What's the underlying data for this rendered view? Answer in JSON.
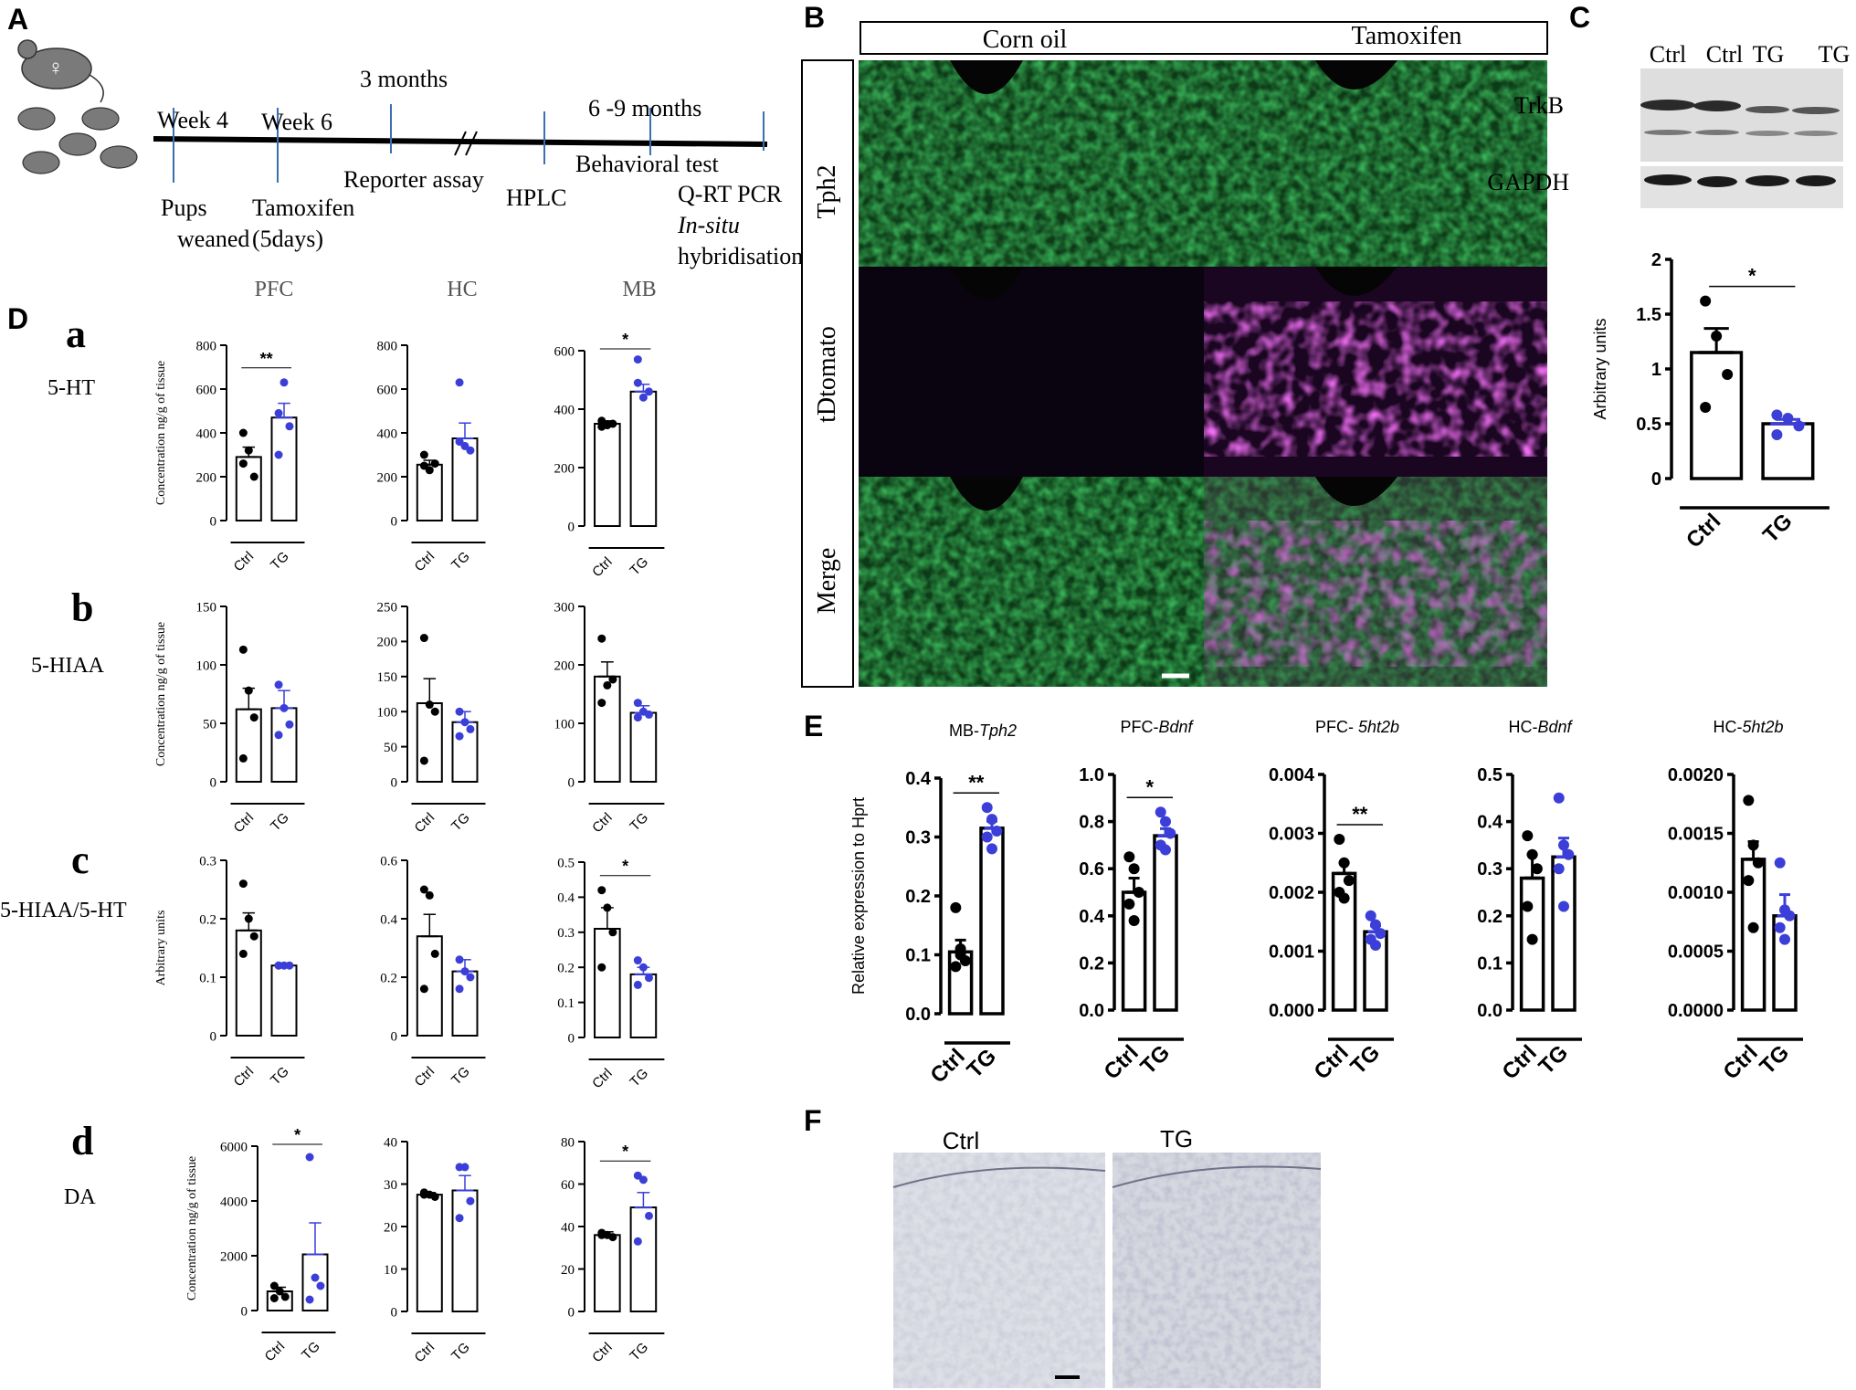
{
  "panel_labels": {
    "A": "A",
    "B": "B",
    "C": "C",
    "D": "D",
    "E": "E",
    "F": "F"
  },
  "panel_a": {
    "timeline": [
      {
        "top": "Week 4",
        "bottom": "Pups\nweaned"
      },
      {
        "top": "Week 6",
        "bottom": "Tamoxifen\n(5days)"
      },
      {
        "top": "3 months",
        "bottom": "Reporter assay"
      },
      {
        "top": "",
        "bottom": "HPLC"
      },
      {
        "top": "6 -9 months",
        "bottom": "Behavioral test"
      },
      {
        "top": "",
        "bottom": "Q-RT PCR\nIn-situ\nhybridisation"
      }
    ],
    "female_symbol": "♀"
  },
  "panel_b": {
    "columns": [
      "Corn oil",
      "Tamoxifen"
    ],
    "rows": [
      "Tph2",
      "tDtomato",
      "Merge"
    ]
  },
  "panel_c": {
    "blot_lanes": [
      "Ctrl",
      "Ctrl",
      "TG",
      "TG"
    ],
    "blot_rows": [
      "TrkB",
      "GAPDH"
    ]
  },
  "panel_d": {
    "columns": [
      "PFC",
      "HC",
      "MB"
    ],
    "rows": [
      {
        "letter": "a",
        "name": "5-HT"
      },
      {
        "letter": "b",
        "name": "5-HIAA"
      },
      {
        "letter": "c",
        "name": "5-HIAA/5-HT"
      },
      {
        "letter": "d",
        "name": "DA"
      }
    ]
  },
  "panel_f": {
    "labels": [
      "Ctrl",
      "TG"
    ]
  },
  "colors": {
    "ctrl": "#000000",
    "tg": "#3b3fd8",
    "tph2": "#1fa03a",
    "tdtomato": "#d12ad8"
  },
  "chart_data": [
    {
      "id": "D-a-PFC",
      "type": "bar",
      "categories": [
        "Ctrl",
        "TG"
      ],
      "values": [
        290,
        470
      ],
      "errors": [
        45,
        65
      ],
      "points": [
        [
          400,
          320,
          200,
          260
        ],
        [
          490,
          630,
          430,
          300
        ]
      ],
      "ylim": [
        0,
        800
      ],
      "yticks": [
        0,
        200,
        400,
        600,
        800
      ],
      "ylabel": "Concentration ng/g of tissue",
      "sig": "**"
    },
    {
      "id": "D-a-HC",
      "type": "bar",
      "categories": [
        "Ctrl",
        "TG"
      ],
      "values": [
        255,
        375
      ],
      "errors": [
        20,
        70
      ],
      "points": [
        [
          300,
          230,
          260,
          250
        ],
        [
          630,
          340,
          320,
          360
        ]
      ],
      "ylim": [
        0,
        800
      ],
      "yticks": [
        0,
        200,
        400,
        600,
        800
      ],
      "ylabel": "",
      "sig": ""
    },
    {
      "id": "D-a-MB",
      "type": "bar",
      "categories": [
        "Ctrl",
        "TG"
      ],
      "values": [
        350,
        460
      ],
      "errors": [
        10,
        25
      ],
      "points": [
        [
          360,
          345,
          350,
          340
        ],
        [
          570,
          440,
          460,
          490
        ]
      ],
      "ylim": [
        0,
        600
      ],
      "yticks": [
        0,
        200,
        400,
        600
      ],
      "ylabel": "",
      "sig": "*"
    },
    {
      "id": "D-b-PFC",
      "type": "bar",
      "categories": [
        "Ctrl",
        "TG"
      ],
      "values": [
        62,
        63
      ],
      "errors": [
        18,
        15
      ],
      "points": [
        [
          113,
          78,
          55,
          20
        ],
        [
          83,
          63,
          49,
          40
        ]
      ],
      "ylim": [
        0,
        150
      ],
      "yticks": [
        0,
        50,
        100,
        150
      ],
      "ylabel": "Concentration ng/g of tissue",
      "sig": ""
    },
    {
      "id": "D-b-HC",
      "type": "bar",
      "categories": [
        "Ctrl",
        "TG"
      ],
      "values": [
        112,
        85
      ],
      "errors": [
        35,
        15
      ],
      "points": [
        [
          205,
          110,
          100,
          30
        ],
        [
          100,
          85,
          75,
          65
        ]
      ],
      "ylim": [
        0,
        250
      ],
      "yticks": [
        0,
        50,
        100,
        150,
        200,
        250
      ],
      "ylabel": "",
      "sig": ""
    },
    {
      "id": "D-b-MB",
      "type": "bar",
      "categories": [
        "Ctrl",
        "TG"
      ],
      "values": [
        180,
        118
      ],
      "errors": [
        25,
        12
      ],
      "points": [
        [
          245,
          165,
          175,
          135
        ],
        [
          135,
          120,
          115,
          110
        ]
      ],
      "ylim": [
        0,
        300
      ],
      "yticks": [
        0,
        100,
        200,
        300
      ],
      "ylabel": "",
      "sig": ""
    },
    {
      "id": "D-c-PFC",
      "type": "bar",
      "categories": [
        "Ctrl",
        "TG"
      ],
      "values": [
        0.18,
        0.12
      ],
      "errors": [
        0.03,
        0.0
      ],
      "points": [
        [
          0.26,
          0.2,
          0.17,
          0.14
        ],
        [
          0.12,
          0.12,
          0.12,
          0.12
        ]
      ],
      "ylim": [
        0,
        0.3
      ],
      "yticks": [
        0.0,
        0.1,
        0.2,
        0.3
      ],
      "ylabel": "Arbitrary units",
      "sig": ""
    },
    {
      "id": "D-c-HC",
      "type": "bar",
      "categories": [
        "Ctrl",
        "TG"
      ],
      "values": [
        0.34,
        0.22
      ],
      "errors": [
        0.075,
        0.04
      ],
      "points": [
        [
          0.5,
          0.48,
          0.28,
          0.16
        ],
        [
          0.26,
          0.22,
          0.2,
          0.16
        ]
      ],
      "ylim": [
        0,
        0.6
      ],
      "yticks": [
        0.0,
        0.2,
        0.4,
        0.6
      ],
      "ylabel": "",
      "sig": ""
    },
    {
      "id": "D-c-MB",
      "type": "bar",
      "categories": [
        "Ctrl",
        "TG"
      ],
      "values": [
        0.31,
        0.18
      ],
      "errors": [
        0.06,
        0.02
      ],
      "points": [
        [
          0.42,
          0.37,
          0.3,
          0.2
        ],
        [
          0.22,
          0.2,
          0.17,
          0.15
        ]
      ],
      "ylim": [
        0,
        0.5
      ],
      "yticks": [
        0.0,
        0.1,
        0.2,
        0.3,
        0.4,
        0.5
      ],
      "ylabel": "",
      "sig": "*"
    },
    {
      "id": "D-d-PFC",
      "type": "bar",
      "categories": [
        "Ctrl",
        "TG"
      ],
      "values": [
        700,
        2050
      ],
      "errors": [
        150,
        1150
      ],
      "points": [
        [
          900,
          700,
          500,
          450
        ],
        [
          5600,
          1200,
          900,
          400
        ]
      ],
      "ylim": [
        0,
        6000
      ],
      "yticks": [
        0,
        2000,
        4000,
        6000
      ],
      "ylabel": "Concentration ng/g of tissue",
      "sig": "*"
    },
    {
      "id": "D-d-HC",
      "type": "bar",
      "categories": [
        "Ctrl",
        "TG"
      ],
      "values": [
        27.5,
        28.5
      ],
      "errors": [
        0.5,
        3.5
      ],
      "points": [
        [
          28,
          27.5,
          27,
          27.5
        ],
        [
          34,
          34,
          26,
          22
        ]
      ],
      "ylim": [
        0,
        40
      ],
      "yticks": [
        0,
        10,
        20,
        30,
        40
      ],
      "ylabel": "",
      "sig": ""
    },
    {
      "id": "D-d-MB",
      "type": "bar",
      "categories": [
        "Ctrl",
        "TG"
      ],
      "values": [
        36,
        49
      ],
      "errors": [
        1.5,
        7
      ],
      "points": [
        [
          37,
          36,
          35,
          36
        ],
        [
          64,
          62,
          45,
          33
        ]
      ],
      "ylim": [
        0,
        80
      ],
      "yticks": [
        0,
        20,
        40,
        60,
        80
      ],
      "ylabel": "",
      "sig": "*"
    },
    {
      "id": "C-TrkB",
      "type": "bar",
      "categories": [
        "Ctrl",
        "TG"
      ],
      "values": [
        1.15,
        0.5
      ],
      "errors": [
        0.22,
        0.04
      ],
      "points": [
        [
          1.62,
          1.3,
          0.95,
          0.65
        ],
        [
          0.58,
          0.55,
          0.48,
          0.4
        ]
      ],
      "ylim": [
        0,
        2.0
      ],
      "yticks": [
        0.0,
        0.5,
        1.0,
        1.5,
        2.0
      ],
      "ylabel": "Arbitrary units",
      "sig": "*"
    },
    {
      "id": "E-MB-Tph2",
      "type": "bar",
      "title_plain": "MB-",
      "title_italic": "Tph2",
      "categories": [
        "Ctrl",
        "TG"
      ],
      "values": [
        0.105,
        0.315
      ],
      "errors": [
        0.02,
        0.012
      ],
      "points": [
        [
          0.18,
          0.1,
          0.09,
          0.08,
          0.11
        ],
        [
          0.35,
          0.33,
          0.31,
          0.3,
          0.28
        ]
      ],
      "ylim": [
        0,
        0.4
      ],
      "yticks": [
        "0.0",
        "0.1",
        "0.2",
        "0.3",
        "0.4"
      ],
      "ylabel": "Relative expression to Hprt",
      "sig": "**"
    },
    {
      "id": "E-PFC-Bdnf",
      "type": "bar",
      "title_plain": "PFC-",
      "title_italic": "Bdnf",
      "categories": [
        "Ctrl",
        "TG"
      ],
      "values": [
        0.5,
        0.74
      ],
      "errors": [
        0.06,
        0.03
      ],
      "points": [
        [
          0.65,
          0.6,
          0.5,
          0.45,
          0.38
        ],
        [
          0.84,
          0.8,
          0.75,
          0.7,
          0.68
        ]
      ],
      "ylim": [
        0,
        1.0
      ],
      "yticks": [
        "0.0",
        "0.2",
        "0.4",
        "0.6",
        "0.8",
        "1.0"
      ],
      "ylabel": "",
      "sig": "*"
    },
    {
      "id": "E-PFC-5ht2b",
      "type": "bar",
      "title_plain": "PFC- ",
      "title_italic": "5ht2b",
      "categories": [
        "Ctrl",
        "TG"
      ],
      "values": [
        0.00232,
        0.00133
      ],
      "errors": [
        0.00018,
        0.0001
      ],
      "points": [
        [
          0.0029,
          0.0025,
          0.0022,
          0.002,
          0.0019
        ],
        [
          0.0016,
          0.00145,
          0.0013,
          0.0012,
          0.0011
        ]
      ],
      "ylim": [
        0,
        0.004
      ],
      "yticks": [
        "0.000",
        "0.001",
        "0.002",
        "0.003",
        "0.004"
      ],
      "ylabel": "",
      "sig": "**"
    },
    {
      "id": "E-HC-Bdnf",
      "type": "bar",
      "title_plain": "HC-",
      "title_italic": "Bdnf",
      "categories": [
        "Ctrl",
        "TG"
      ],
      "values": [
        0.28,
        0.325
      ],
      "errors": [
        0.05,
        0.04
      ],
      "points": [
        [
          0.37,
          0.33,
          0.3,
          0.22,
          0.15
        ],
        [
          0.45,
          0.35,
          0.33,
          0.3,
          0.22
        ]
      ],
      "ylim": [
        0,
        0.5
      ],
      "yticks": [
        "0.0",
        "0.1",
        "0.2",
        "0.3",
        "0.4",
        "0.5"
      ],
      "ylabel": "",
      "sig": ""
    },
    {
      "id": "E-HC-5ht2b",
      "type": "bar",
      "title_plain": "HC-",
      "title_italic": "5ht2b",
      "categories": [
        "Ctrl",
        "TG"
      ],
      "values": [
        0.00128,
        0.0008
      ],
      "errors": [
        0.00015,
        0.00018
      ],
      "points": [
        [
          0.00178,
          0.0014,
          0.00125,
          0.0011,
          0.0007
        ],
        [
          0.00125,
          0.00085,
          0.0008,
          0.0007,
          0.0006
        ]
      ],
      "ylim": [
        0,
        0.002
      ],
      "yticks": [
        "0.0000",
        "0.0005",
        "0.0010",
        "0.0015",
        "0.0020"
      ],
      "ylabel": "",
      "sig": ""
    }
  ]
}
